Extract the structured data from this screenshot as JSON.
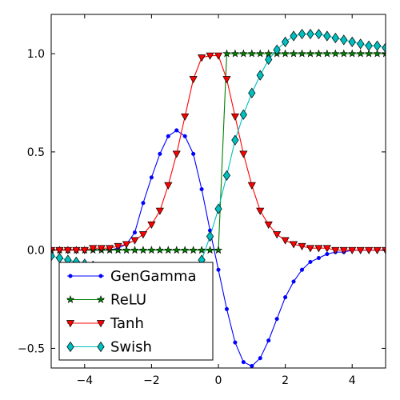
{
  "chart_data": {
    "type": "line",
    "title": "",
    "xlabel": "",
    "ylabel": "",
    "xlim": [
      -5,
      5
    ],
    "ylim": [
      -0.6,
      1.2
    ],
    "xticks": [
      -4,
      -2,
      0,
      2,
      4
    ],
    "xtick_labels": [
      "−4",
      "−2",
      "0",
      "2",
      "4"
    ],
    "yticks": [
      -0.5,
      0.0,
      0.5,
      1.0
    ],
    "ytick_labels": [
      "−0.5",
      "0.0",
      "0.5",
      "1.0"
    ],
    "grid": false,
    "legend_position": "lower-left",
    "x": [
      -5.0,
      -4.75,
      -4.5,
      -4.25,
      -4.0,
      -3.75,
      -3.5,
      -3.25,
      -3.0,
      -2.75,
      -2.5,
      -2.25,
      -2.0,
      -1.75,
      -1.5,
      -1.25,
      -1.0,
      -0.75,
      -0.5,
      -0.25,
      0.0,
      0.25,
      0.5,
      0.75,
      1.0,
      1.25,
      1.5,
      1.75,
      2.0,
      2.25,
      2.5,
      2.75,
      3.0,
      3.25,
      3.5,
      3.75,
      4.0,
      4.25,
      4.5,
      4.75,
      5.0
    ],
    "series": [
      {
        "name": "GenGamma",
        "color": "#0000ff",
        "marker": "point",
        "values": [
          0.0,
          0.0,
          0.0,
          0.0,
          0.0,
          0.0,
          0.0,
          0.0,
          0.01,
          0.03,
          0.09,
          0.24,
          0.37,
          0.49,
          0.58,
          0.61,
          0.58,
          0.49,
          0.31,
          0.1,
          -0.1,
          -0.3,
          -0.47,
          -0.57,
          -0.59,
          -0.55,
          -0.46,
          -0.35,
          -0.24,
          -0.16,
          -0.1,
          -0.06,
          -0.04,
          -0.02,
          -0.01,
          -0.01,
          0.0,
          0.0,
          0.0,
          0.0,
          0.0
        ]
      },
      {
        "name": "ReLU",
        "color": "#007f00",
        "marker": "star",
        "values": [
          0.0,
          0.0,
          0.0,
          0.0,
          0.0,
          0.0,
          0.0,
          0.0,
          0.0,
          0.0,
          0.0,
          0.0,
          0.0,
          0.0,
          0.0,
          0.0,
          0.0,
          0.0,
          0.0,
          0.0,
          0.0,
          1.0,
          1.0,
          1.0,
          1.0,
          1.0,
          1.0,
          1.0,
          1.0,
          1.0,
          1.0,
          1.0,
          1.0,
          1.0,
          1.0,
          1.0,
          1.0,
          1.0,
          1.0,
          1.0,
          1.0
        ]
      },
      {
        "name": "Tanh",
        "color": "#ff0000",
        "marker": "triangle-down",
        "values": [
          0.0,
          0.0,
          0.0,
          0.0,
          0.0,
          0.01,
          0.01,
          0.01,
          0.02,
          0.03,
          0.05,
          0.08,
          0.13,
          0.2,
          0.33,
          0.49,
          0.68,
          0.87,
          0.98,
          0.99,
          0.99,
          0.87,
          0.68,
          0.49,
          0.33,
          0.2,
          0.13,
          0.08,
          0.05,
          0.03,
          0.02,
          0.01,
          0.01,
          0.01,
          0.0,
          0.0,
          0.0,
          0.0,
          0.0,
          0.0,
          0.0
        ]
      },
      {
        "name": "Swish",
        "color": "#00bfbf",
        "marker": "diamond",
        "values": [
          -0.03,
          -0.04,
          -0.05,
          -0.06,
          -0.07,
          -0.08,
          -0.1,
          -0.12,
          -0.14,
          -0.16,
          -0.19,
          -0.22,
          -0.24,
          -0.26,
          -0.27,
          -0.25,
          -0.21,
          -0.14,
          -0.05,
          0.07,
          0.21,
          0.38,
          0.56,
          0.69,
          0.8,
          0.89,
          0.97,
          1.02,
          1.06,
          1.09,
          1.1,
          1.1,
          1.1,
          1.09,
          1.08,
          1.07,
          1.06,
          1.05,
          1.04,
          1.04,
          1.03
        ]
      }
    ]
  }
}
